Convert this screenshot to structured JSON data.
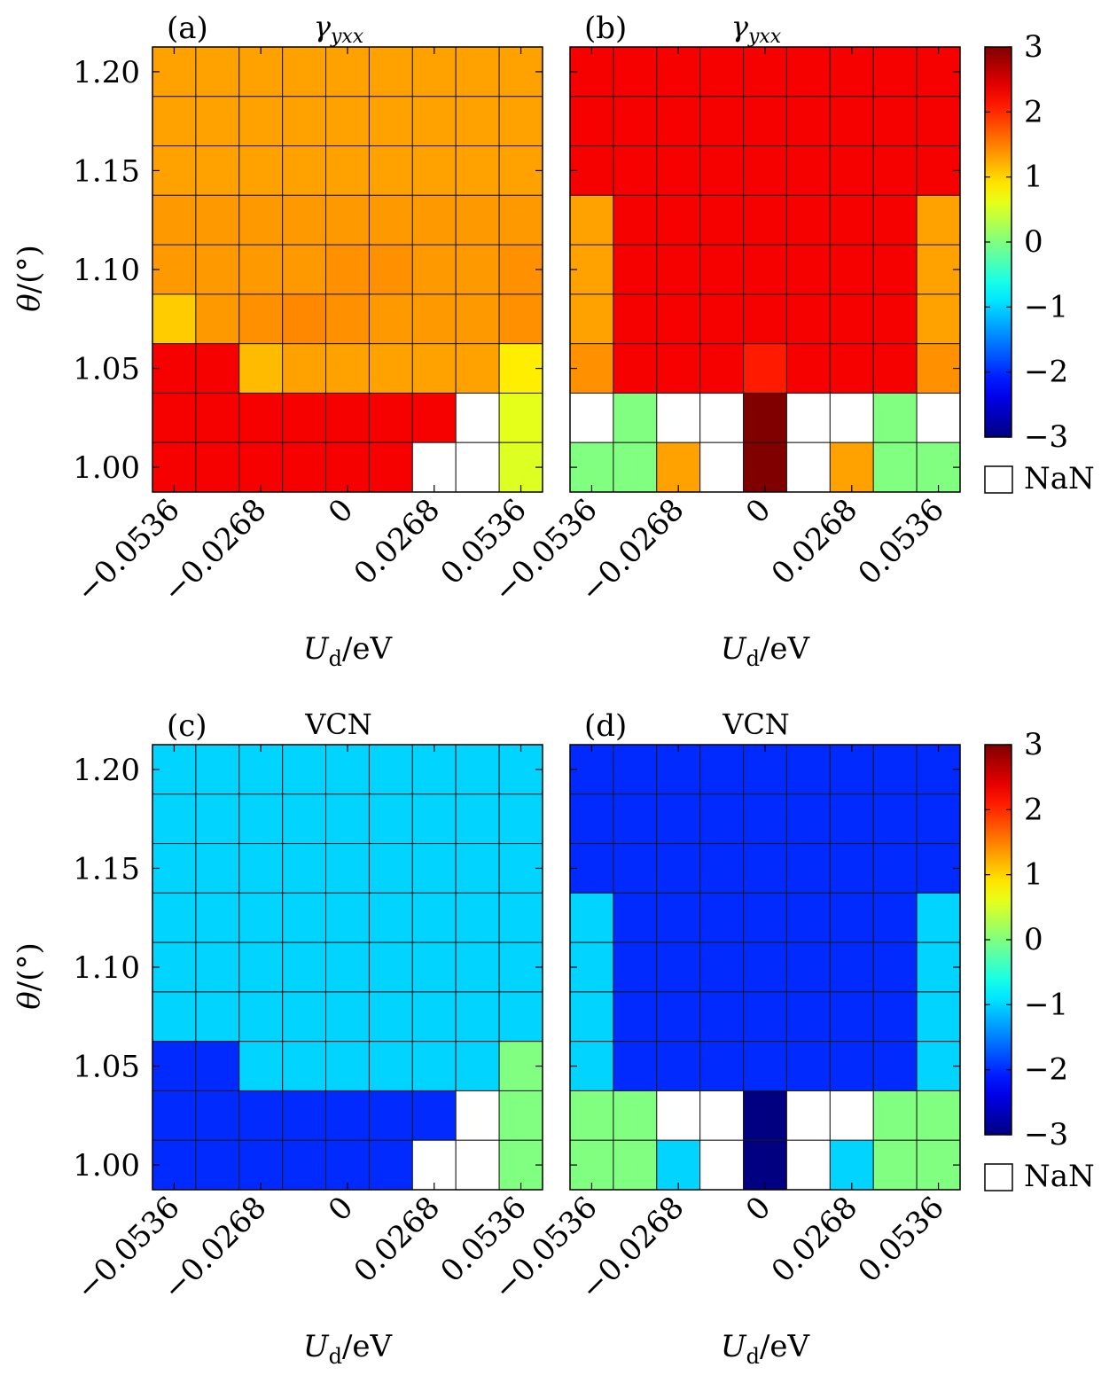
{
  "figure": {
    "colorbar_ticks": [
      "3",
      "2",
      "1",
      "0",
      "−1",
      "−2",
      "−3"
    ],
    "colorbar_tick_values": [
      3,
      2,
      1,
      0,
      -1,
      -2,
      -3
    ],
    "nan_label": "NaN",
    "colormap": "jet",
    "color_range": [
      -3,
      3
    ],
    "nan_color": "#ffffff"
  },
  "chart_data": [
    {
      "type": "heatmap",
      "panel": "(a)",
      "title": "γyxx",
      "xlabel": "U_d/eV",
      "ylabel": "θ/(°)",
      "x_ticks": [
        "−0.0536",
        "−0.0268",
        "0",
        "0.0268",
        "0.0536"
      ],
      "y_ticks": [
        "1.20",
        "1.15",
        "1.10",
        "1.05",
        "1.00"
      ],
      "x": [
        -0.0536,
        -0.0402,
        -0.0268,
        -0.0134,
        0,
        0.0134,
        0.0268,
        0.0402,
        0.0536
      ],
      "y": [
        1.2,
        1.175,
        1.15,
        1.125,
        1.1,
        1.075,
        1.05,
        1.025,
        1.0
      ],
      "z": [
        [
          1.3,
          1.3,
          1.3,
          1.3,
          1.3,
          1.3,
          1.3,
          1.3,
          1.3
        ],
        [
          1.3,
          1.3,
          1.3,
          1.3,
          1.3,
          1.3,
          1.3,
          1.3,
          1.3
        ],
        [
          1.3,
          1.3,
          1.3,
          1.3,
          1.3,
          1.3,
          1.3,
          1.3,
          1.3
        ],
        [
          1.35,
          1.35,
          1.35,
          1.35,
          1.35,
          1.35,
          1.35,
          1.35,
          1.35
        ],
        [
          1.35,
          1.35,
          1.35,
          1.35,
          1.4,
          1.4,
          1.35,
          1.35,
          1.4
        ],
        [
          1.05,
          1.35,
          1.4,
          1.45,
          1.4,
          1.35,
          1.35,
          1.35,
          1.4
        ],
        [
          2.3,
          2.3,
          1.15,
          1.3,
          1.3,
          1.3,
          1.3,
          1.3,
          0.85
        ],
        [
          2.3,
          2.3,
          2.3,
          2.3,
          2.3,
          2.3,
          2.3,
          null,
          0.6
        ],
        [
          2.3,
          2.3,
          2.3,
          2.3,
          2.3,
          2.3,
          null,
          null,
          0.55
        ]
      ]
    },
    {
      "type": "heatmap",
      "panel": "(b)",
      "title": "γyxx",
      "xlabel": "U_d/eV",
      "ylabel": "",
      "x_ticks": [
        "−0.0536",
        "−0.0268",
        "0",
        "0.0268",
        "0.0536"
      ],
      "y_ticks": [],
      "x": [
        -0.0536,
        -0.0402,
        -0.0268,
        -0.0134,
        0,
        0.0134,
        0.0268,
        0.0402,
        0.0536
      ],
      "y": [
        1.2,
        1.175,
        1.15,
        1.125,
        1.1,
        1.075,
        1.05,
        1.025,
        1.0
      ],
      "z": [
        [
          2.3,
          2.3,
          2.3,
          2.3,
          2.3,
          2.3,
          2.3,
          2.3,
          2.3
        ],
        [
          2.3,
          2.3,
          2.3,
          2.3,
          2.3,
          2.3,
          2.3,
          2.3,
          2.3
        ],
        [
          2.3,
          2.3,
          2.3,
          2.3,
          2.3,
          2.3,
          2.3,
          2.3,
          2.3
        ],
        [
          1.3,
          2.3,
          2.3,
          2.3,
          2.3,
          2.3,
          2.3,
          2.3,
          1.3
        ],
        [
          1.3,
          2.3,
          2.3,
          2.3,
          2.3,
          2.3,
          2.3,
          2.3,
          1.3
        ],
        [
          1.3,
          2.3,
          2.3,
          2.3,
          2.3,
          2.3,
          2.3,
          2.3,
          1.3
        ],
        [
          1.4,
          2.3,
          2.3,
          2.3,
          2.1,
          2.3,
          2.3,
          2.3,
          1.4
        ],
        [
          null,
          0.0,
          null,
          null,
          3.0,
          null,
          null,
          0.0,
          null
        ],
        [
          0.0,
          0.0,
          1.3,
          null,
          3.0,
          null,
          1.3,
          0.0,
          0.0
        ]
      ]
    },
    {
      "type": "heatmap",
      "panel": "(c)",
      "title": "VCN",
      "xlabel": "U_d/eV",
      "ylabel": "θ/(°)",
      "x_ticks": [
        "−0.0536",
        "−0.0268",
        "0",
        "0.0268",
        "0.0536"
      ],
      "y_ticks": [
        "1.20",
        "1.15",
        "1.10",
        "1.05",
        "1.00"
      ],
      "x": [
        -0.0536,
        -0.0402,
        -0.0268,
        -0.0134,
        0,
        0.0134,
        0.0268,
        0.0402,
        0.0536
      ],
      "y": [
        1.2,
        1.175,
        1.15,
        1.125,
        1.1,
        1.075,
        1.05,
        1.025,
        1.0
      ],
      "z": [
        [
          -1.0,
          -1.0,
          -1.0,
          -1.0,
          -1.0,
          -1.0,
          -1.0,
          -1.0,
          -1.0
        ],
        [
          -1.0,
          -1.0,
          -1.0,
          -1.0,
          -1.0,
          -1.0,
          -1.0,
          -1.0,
          -1.0
        ],
        [
          -1.0,
          -1.0,
          -1.0,
          -1.0,
          -1.0,
          -1.0,
          -1.0,
          -1.0,
          -1.0
        ],
        [
          -1.0,
          -1.0,
          -1.0,
          -1.0,
          -1.0,
          -1.0,
          -1.0,
          -1.0,
          -1.0
        ],
        [
          -1.0,
          -1.0,
          -1.0,
          -1.0,
          -1.0,
          -1.0,
          -1.0,
          -1.0,
          -1.0
        ],
        [
          -1.0,
          -1.0,
          -1.0,
          -1.0,
          -1.0,
          -1.0,
          -1.0,
          -1.0,
          -1.0
        ],
        [
          -2.0,
          -2.0,
          -1.0,
          -1.0,
          -1.0,
          -1.0,
          -1.0,
          -1.0,
          0.0
        ],
        [
          -2.0,
          -2.0,
          -2.0,
          -2.0,
          -2.0,
          -2.0,
          -2.0,
          null,
          0.0
        ],
        [
          -2.0,
          -2.0,
          -2.0,
          -2.0,
          -2.0,
          -2.0,
          null,
          null,
          0.0
        ]
      ]
    },
    {
      "type": "heatmap",
      "panel": "(d)",
      "title": "VCN",
      "xlabel": "U_d/eV",
      "ylabel": "",
      "x_ticks": [
        "−0.0536",
        "−0.0268",
        "0",
        "0.0268",
        "0.0536"
      ],
      "y_ticks": [],
      "x": [
        -0.0536,
        -0.0402,
        -0.0268,
        -0.0134,
        0,
        0.0134,
        0.0268,
        0.0402,
        0.0536
      ],
      "y": [
        1.2,
        1.175,
        1.15,
        1.125,
        1.1,
        1.075,
        1.05,
        1.025,
        1.0
      ],
      "z": [
        [
          -2.0,
          -2.0,
          -2.0,
          -2.0,
          -2.0,
          -2.0,
          -2.0,
          -2.0,
          -2.0
        ],
        [
          -2.0,
          -2.0,
          -2.0,
          -2.0,
          -2.0,
          -2.0,
          -2.0,
          -2.0,
          -2.0
        ],
        [
          -2.0,
          -2.0,
          -2.0,
          -2.0,
          -2.0,
          -2.0,
          -2.0,
          -2.0,
          -2.0
        ],
        [
          -1.0,
          -2.0,
          -2.0,
          -2.0,
          -2.0,
          -2.0,
          -2.0,
          -2.0,
          -1.0
        ],
        [
          -1.0,
          -2.0,
          -2.0,
          -2.0,
          -2.0,
          -2.0,
          -2.0,
          -2.0,
          -1.0
        ],
        [
          -1.0,
          -2.0,
          -2.0,
          -2.0,
          -2.0,
          -2.0,
          -2.0,
          -2.0,
          -1.0
        ],
        [
          -1.0,
          -2.0,
          -2.0,
          -2.0,
          -2.0,
          -2.0,
          -2.0,
          -2.0,
          -1.0
        ],
        [
          0.0,
          0.0,
          null,
          null,
          -3.0,
          null,
          null,
          0.0,
          0.0
        ],
        [
          0.0,
          0.0,
          -1.0,
          null,
          -3.0,
          null,
          -1.0,
          0.0,
          0.0
        ]
      ]
    }
  ]
}
